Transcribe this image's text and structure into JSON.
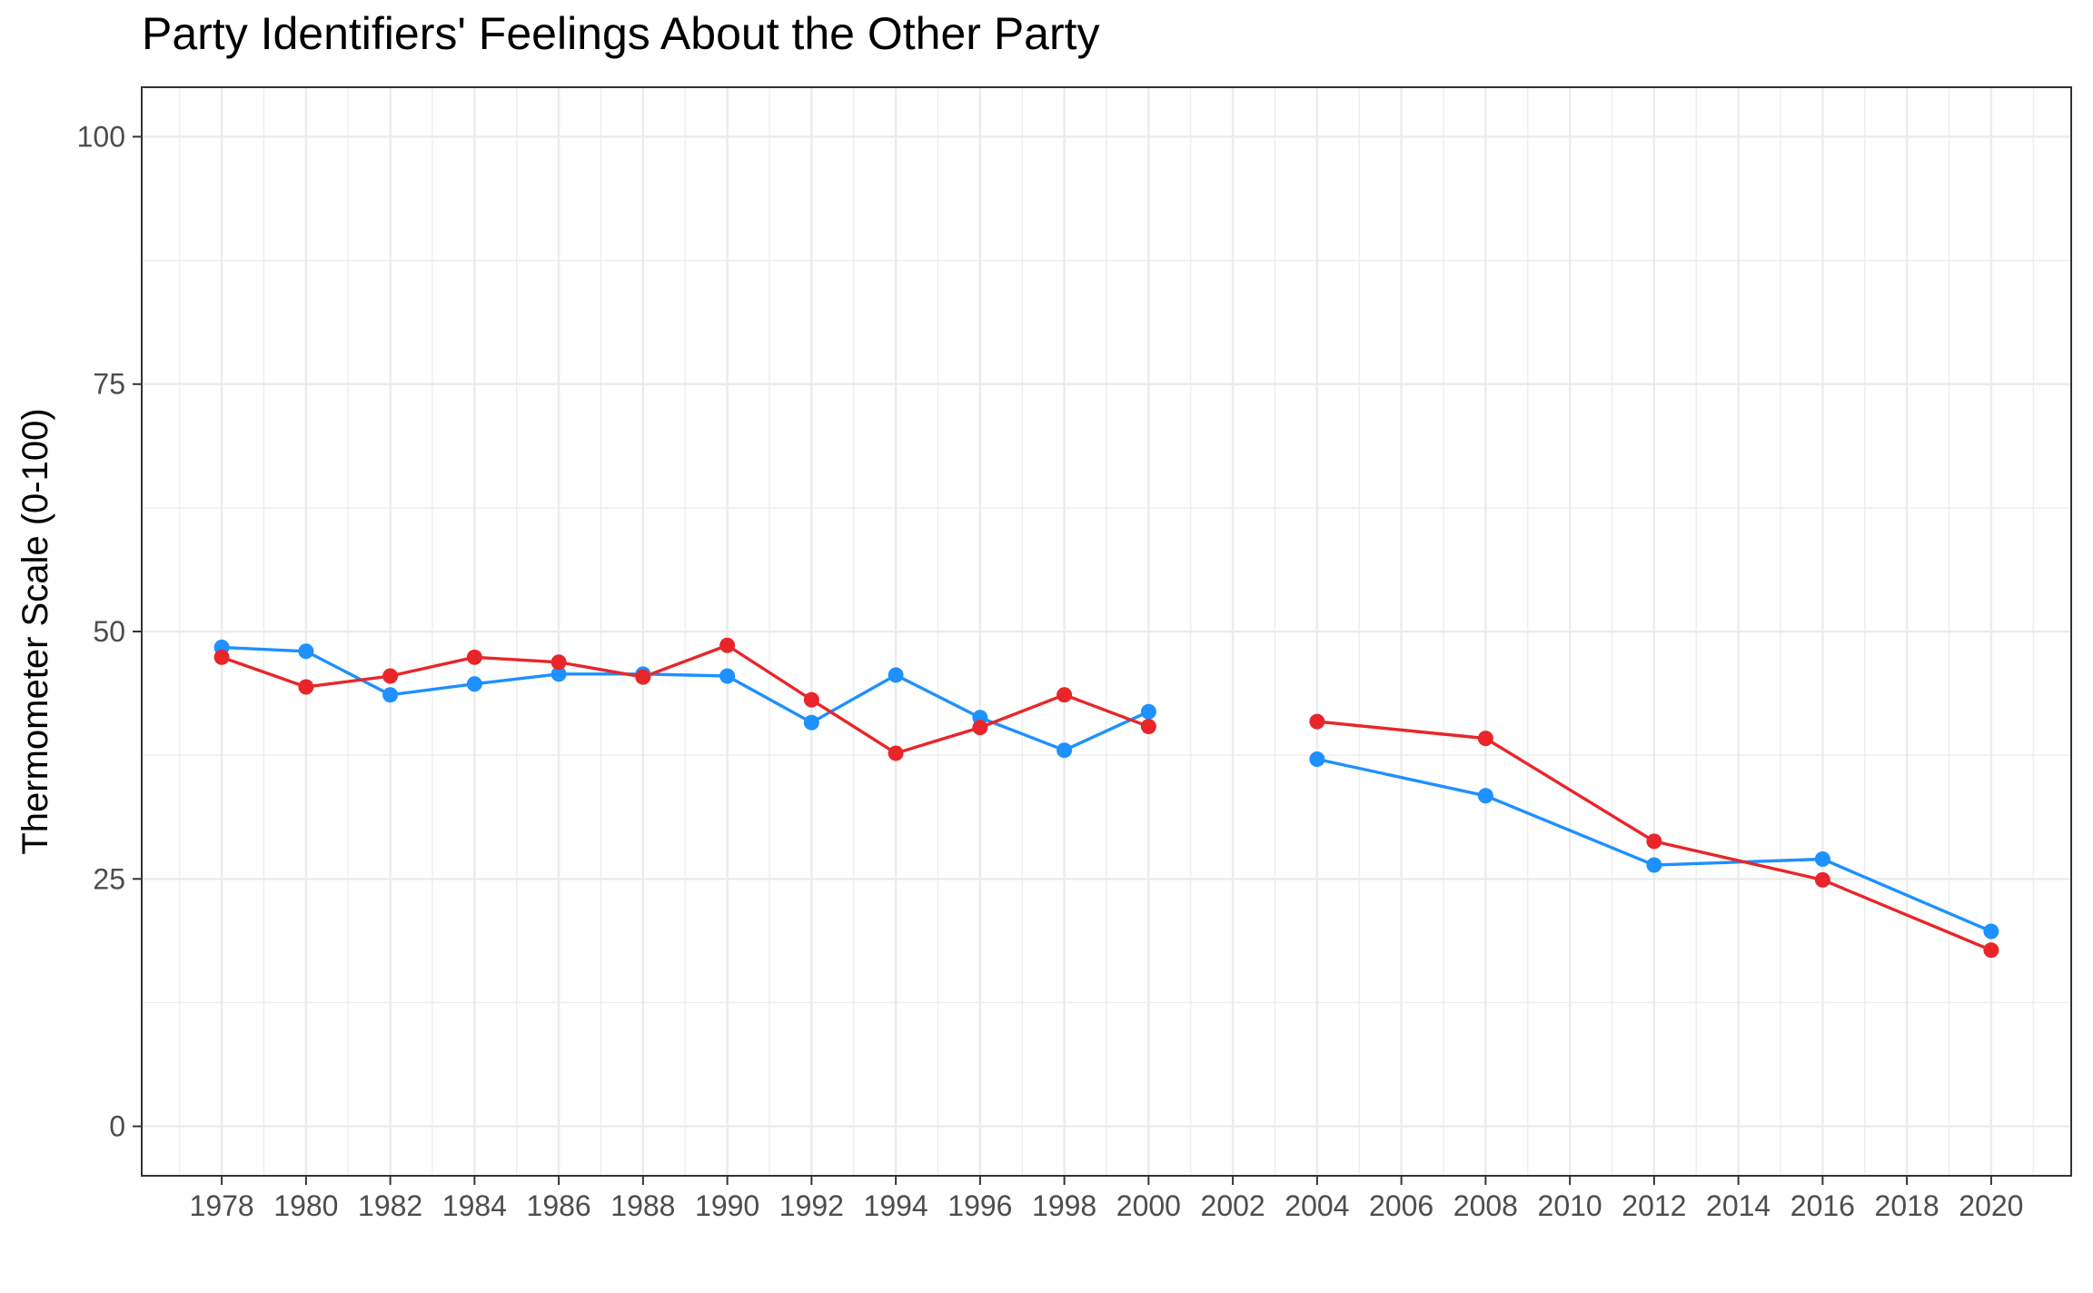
{
  "chart_data": {
    "type": "line",
    "title": "Party Identifiers' Feelings About the Other Party",
    "xlabel": "",
    "ylabel": "Thermometer Scale (0-100)",
    "xlim": [
      1976.1,
      2021.9
    ],
    "ylim": [
      -5,
      105
    ],
    "x_ticks": [
      1978,
      1980,
      1982,
      1984,
      1986,
      1988,
      1990,
      1992,
      1994,
      1996,
      1998,
      2000,
      2002,
      2004,
      2006,
      2008,
      2010,
      2012,
      2014,
      2016,
      2018,
      2020
    ],
    "x_tick_labels": [
      "1978",
      "1980",
      "1982",
      "1984",
      "1986",
      "1988",
      "1990",
      "1992",
      "1994",
      "1996",
      "1998",
      "2000",
      "2002",
      "2004",
      "2006",
      "2008",
      "2010",
      "2012",
      "2014",
      "2016",
      "2018",
      "2020"
    ],
    "y_ticks": [
      0,
      25,
      50,
      75,
      100
    ],
    "y_tick_labels": [
      "0",
      "25",
      "50",
      "75",
      "100"
    ],
    "grid": true,
    "legend": "none",
    "series": [
      {
        "color": "#1E90FF",
        "segments": [
          [
            [
              1978,
              48.4
            ],
            [
              1980,
              48.0
            ],
            [
              1982,
              43.6
            ],
            [
              1984,
              44.7
            ],
            [
              1986,
              45.7
            ],
            [
              1988,
              45.7
            ],
            [
              1990,
              45.5
            ],
            [
              1992,
              40.8
            ],
            [
              1994,
              45.6
            ],
            [
              1996,
              41.3
            ],
            [
              1998,
              38.0
            ],
            [
              2000,
              41.9
            ]
          ],
          [
            [
              2004,
              37.1
            ],
            [
              2008,
              33.4
            ],
            [
              2012,
              26.4
            ],
            [
              2016,
              27.0
            ],
            [
              2020,
              19.7
            ]
          ]
        ]
      },
      {
        "color": "#E8262A",
        "segments": [
          [
            [
              1978,
              47.4
            ],
            [
              1980,
              44.4
            ],
            [
              1982,
              45.5
            ],
            [
              1984,
              47.4
            ],
            [
              1986,
              46.9
            ],
            [
              1988,
              45.4
            ],
            [
              1990,
              48.6
            ],
            [
              1992,
              43.1
            ],
            [
              1994,
              37.7
            ],
            [
              1996,
              40.3
            ],
            [
              1998,
              43.6
            ],
            [
              2000,
              40.4
            ]
          ],
          [
            [
              2004,
              40.9
            ],
            [
              2008,
              39.2
            ],
            [
              2012,
              28.8
            ],
            [
              2016,
              24.9
            ],
            [
              2020,
              17.8
            ]
          ]
        ]
      }
    ]
  }
}
